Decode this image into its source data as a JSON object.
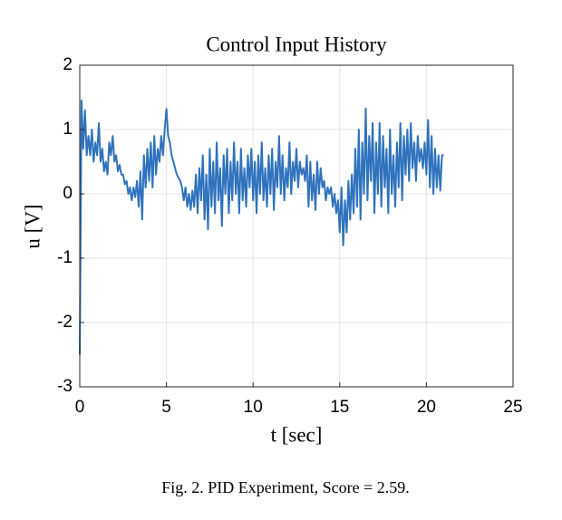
{
  "chart_data": {
    "type": "line",
    "title": "Control Input History",
    "x_label": "t [sec]",
    "y_label": "u [V]",
    "caption": "Fig. 2.  PID Experiment, Score = 2.59.",
    "xlim": [
      0,
      25
    ],
    "xticks": [
      0,
      5,
      10,
      15,
      20,
      25
    ],
    "ylim": [
      -3,
      2
    ],
    "yticks": [
      -3,
      -2,
      -1,
      0,
      1,
      2
    ],
    "grid": true,
    "color": "#2f72bd",
    "x": [
      0,
      0.1,
      0.2,
      0.3,
      0.4,
      0.5,
      0.6,
      0.7,
      0.8,
      0.9,
      1,
      1.1,
      1.2,
      1.3,
      1.4,
      1.5,
      1.6,
      1.7,
      1.8,
      1.9,
      2,
      2.1,
      2.2,
      2.3,
      2.4,
      2.5,
      2.6,
      2.7,
      2.8,
      2.9,
      3,
      3.1,
      3.2,
      3.3,
      3.4,
      3.5,
      3.6,
      3.7,
      3.8,
      3.9,
      4,
      4.1,
      4.2,
      4.3,
      4.4,
      4.5,
      4.6,
      4.7,
      4.8,
      4.9,
      5,
      5.1,
      5.2,
      5.3,
      5.4,
      5.5,
      5.6,
      5.7,
      5.8,
      5.9,
      6,
      6.1,
      6.2,
      6.3,
      6.4,
      6.5,
      6.6,
      6.7,
      6.8,
      6.9,
      7,
      7.1,
      7.2,
      7.3,
      7.4,
      7.5,
      7.6,
      7.7,
      7.8,
      7.9,
      8,
      8.1,
      8.2,
      8.3,
      8.4,
      8.5,
      8.6,
      8.7,
      8.8,
      8.9,
      9,
      9.1,
      9.2,
      9.3,
      9.4,
      9.5,
      9.6,
      9.7,
      9.8,
      9.9,
      10,
      10.1,
      10.2,
      10.3,
      10.4,
      10.5,
      10.6,
      10.7,
      10.8,
      10.9,
      11,
      11.1,
      11.2,
      11.3,
      11.4,
      11.5,
      11.6,
      11.7,
      11.8,
      11.9,
      12,
      12.1,
      12.2,
      12.3,
      12.4,
      12.5,
      12.6,
      12.7,
      12.8,
      12.9,
      13,
      13.1,
      13.2,
      13.3,
      13.4,
      13.5,
      13.6,
      13.7,
      13.8,
      13.9,
      14,
      14.1,
      14.2,
      14.3,
      14.4,
      14.5,
      14.6,
      14.7,
      14.8,
      14.9,
      15,
      15.1,
      15.2,
      15.3,
      15.4,
      15.5,
      15.6,
      15.7,
      15.8,
      15.9,
      16,
      16.1,
      16.2,
      16.3,
      16.4,
      16.5,
      16.6,
      16.7,
      16.8,
      16.9,
      17,
      17.1,
      17.2,
      17.3,
      17.4,
      17.5,
      17.6,
      17.7,
      17.8,
      17.9,
      18,
      18.1,
      18.2,
      18.3,
      18.4,
      18.5,
      18.6,
      18.7,
      18.8,
      18.9,
      19,
      19.1,
      19.2,
      19.3,
      19.4,
      19.5,
      19.6,
      19.7,
      19.8,
      19.9,
      20,
      20.1,
      20.2,
      20.3,
      20.4,
      20.5,
      20.6,
      20.7,
      20.8,
      20.9,
      21
    ],
    "values": [
      -2.5,
      1.45,
      0.7,
      1.3,
      0.6,
      0.9,
      0.6,
      1.0,
      0.5,
      0.8,
      0.6,
      1.1,
      0.5,
      0.7,
      0.35,
      0.5,
      0.3,
      0.8,
      0.6,
      0.9,
      0.5,
      0.6,
      0.35,
      0.45,
      0.3,
      0.3,
      0.15,
      0.2,
      0.0,
      0.1,
      -0.1,
      0.1,
      -0.05,
      0.2,
      -0.2,
      0.35,
      -0.4,
      0.6,
      0.1,
      0.7,
      0.2,
      0.8,
      0.1,
      0.9,
      0.3,
      0.7,
      0.5,
      0.9,
      0.6,
      1.0,
      1.32,
      0.9,
      0.8,
      0.6,
      0.5,
      0.4,
      0.3,
      0.25,
      0.2,
      0.1,
      -0.1,
      0.1,
      -0.2,
      0.0,
      -0.25,
      0.05,
      -0.2,
      0.3,
      -0.3,
      0.4,
      -0.1,
      0.6,
      -0.4,
      0.3,
      -0.55,
      0.7,
      -0.2,
      0.5,
      -0.3,
      0.8,
      -0.1,
      0.4,
      -0.5,
      0.6,
      0.0,
      0.7,
      -0.3,
      0.5,
      -0.1,
      0.8,
      0.0,
      0.5,
      -0.3,
      0.7,
      -0.1,
      0.4,
      -0.2,
      0.6,
      0.1,
      0.7,
      -0.1,
      0.5,
      -0.3,
      0.6,
      0.0,
      0.8,
      -0.1,
      0.4,
      -0.2,
      0.6,
      0.0,
      0.7,
      -0.25,
      0.5,
      0.1,
      0.9,
      0.0,
      0.6,
      -0.1,
      0.4,
      0.1,
      0.8,
      0.0,
      0.5,
      0.2,
      0.7,
      0.1,
      0.5,
      0.3,
      0.4,
      0.2,
      0.6,
      -0.2,
      0.5,
      -0.1,
      0.3,
      -0.25,
      0.5,
      0.0,
      0.4,
      0.1,
      0.2,
      -0.1,
      0.1,
      0.0,
      0.1,
      -0.2,
      0.0,
      -0.3,
      -0.1,
      -0.6,
      0.1,
      -0.8,
      -0.1,
      -0.6,
      0.2,
      -0.4,
      0.3,
      -0.3,
      0.7,
      -0.2,
      1.0,
      -0.4,
      0.8,
      0.0,
      1.33,
      -0.1,
      0.9,
      0.2,
      1.1,
      -0.3,
      0.8,
      0.0,
      1.1,
      -0.2,
      0.9,
      0.1,
      0.7,
      -0.3,
      1.0,
      0.0,
      0.6,
      -0.2,
      0.8,
      0.1,
      1.1,
      -0.1,
      0.9,
      0.3,
      1.0,
      0.2,
      1.1,
      0.4,
      0.8,
      0.2,
      0.9,
      0.5,
      0.7,
      0.4,
      0.8,
      0.3,
      1.15,
      0.1,
      0.9,
      0.0,
      0.7,
      0.1,
      0.6,
      0.05,
      0.6,
      0.6
    ]
  }
}
